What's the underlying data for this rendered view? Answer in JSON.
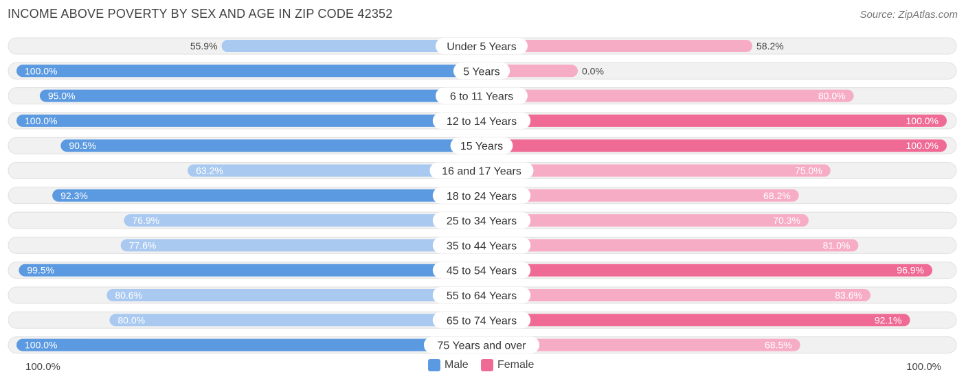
{
  "title": "INCOME ABOVE POVERTY BY SEX AND AGE IN ZIP CODE 42352",
  "source": "Source: ZipAtlas.com",
  "axis": {
    "left_label": "100.0%",
    "right_label": "100.0%"
  },
  "legend": {
    "male": "Male",
    "female": "Female"
  },
  "colors": {
    "male_strong": "#5b9ae0",
    "male_light": "#a9c9f0",
    "female_strong": "#f06a96",
    "female_light": "#f7acc5",
    "row_bg": "#f1f1f1",
    "row_border": "#e0e0e0"
  },
  "chart_data": {
    "type": "bar",
    "orientation": "horizontal-diverging",
    "title": "INCOME ABOVE POVERTY BY SEX AND AGE IN ZIP CODE 42352",
    "categories": [
      "Under 5 Years",
      "5 Years",
      "6 to 11 Years",
      "12 to 14 Years",
      "15 Years",
      "16 and 17 Years",
      "18 to 24 Years",
      "25 to 34 Years",
      "35 to 44 Years",
      "45 to 54 Years",
      "55 to 64 Years",
      "65 to 74 Years",
      "75 Years and over"
    ],
    "series": [
      {
        "name": "Male",
        "values": [
          55.9,
          100.0,
          95.0,
          100.0,
          90.5,
          63.2,
          92.3,
          76.9,
          77.6,
          99.5,
          80.6,
          80.0,
          100.0
        ],
        "labels": [
          "55.9%",
          "100.0%",
          "95.0%",
          "100.0%",
          "90.5%",
          "63.2%",
          "92.3%",
          "76.9%",
          "77.6%",
          "99.5%",
          "80.6%",
          "80.0%",
          "100.0%"
        ]
      },
      {
        "name": "Female",
        "values": [
          58.2,
          0.0,
          80.0,
          100.0,
          100.0,
          75.0,
          68.2,
          70.3,
          81.0,
          96.9,
          83.6,
          92.1,
          68.5
        ],
        "labels": [
          "58.2%",
          "0.0%",
          "80.0%",
          "100.0%",
          "100.0%",
          "75.0%",
          "68.2%",
          "70.3%",
          "81.0%",
          "96.9%",
          "83.6%",
          "92.1%",
          "68.5%"
        ]
      }
    ],
    "xlim": [
      -100,
      100
    ],
    "legend_position": "bottom-center"
  }
}
